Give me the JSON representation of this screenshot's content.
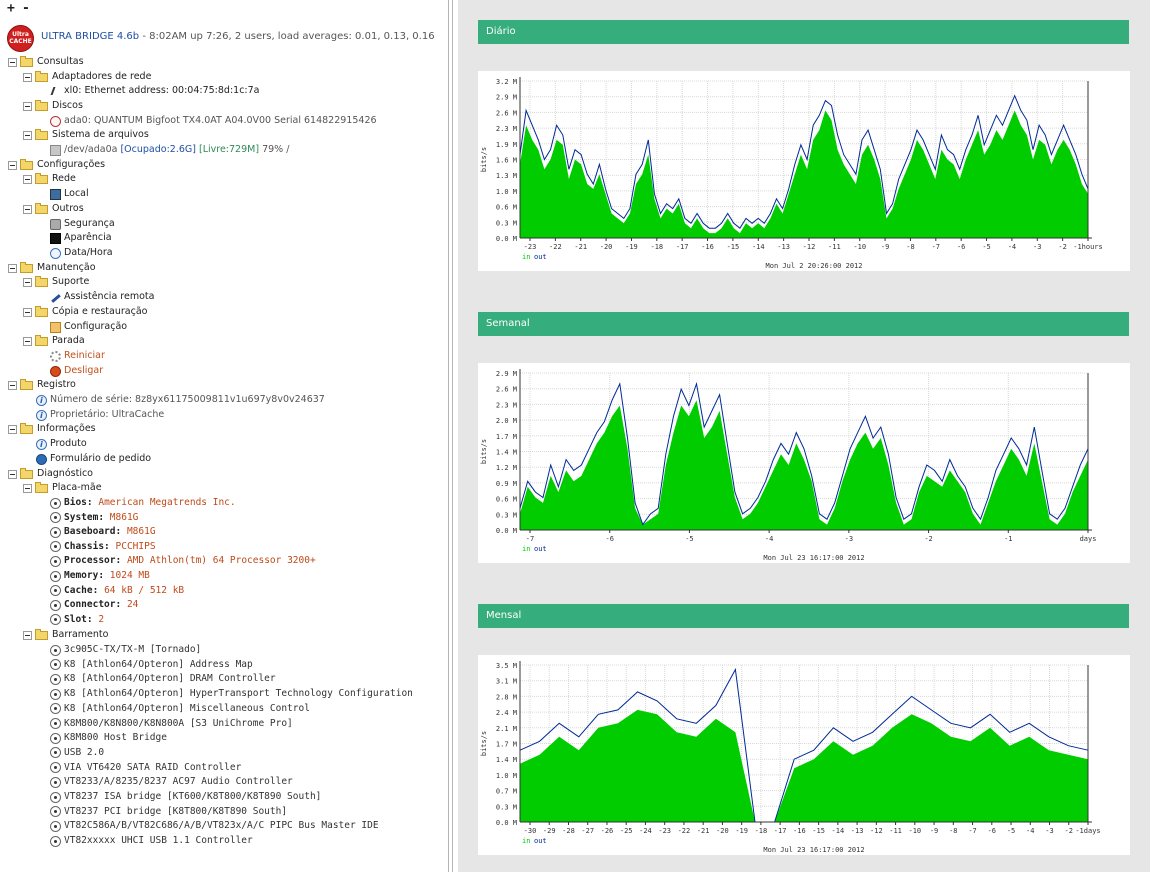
{
  "toolbar": {
    "expand": "+",
    "collapse": "-"
  },
  "header": {
    "logo_text": "Ultra CACHE",
    "app_name": "ULTRA BRIDGE 4.6b",
    "status": " - 8:02AM up 7:26, 2 users, load averages: 0.01, 0.13, 0.16"
  },
  "tree": {
    "consultas": "Consultas",
    "adaptadores": "Adaptadores de rede",
    "xl0": "xl0: Ethernet address: 00:04:75:8d:1c:7a",
    "discos": "Discos",
    "ada0": "ada0: QUANTUM Bigfoot TX4.0AT A04.0V00 Serial 614822915426",
    "sistema_arquivos": "Sistema de arquivos",
    "fs_dev": "/dev/ada0a",
    "fs_used": "[Ocupado:2.6G]",
    "fs_free": "[Livre:729M]",
    "fs_pct": "79% /",
    "configuracoes": "Configurações",
    "rede": "Rede",
    "local": "Local",
    "outros": "Outros",
    "seguranca": "Segurança",
    "aparencia": "Aparência",
    "datahora": "Data/Hora",
    "manutencao": "Manutenção",
    "suporte": "Suporte",
    "assistencia": "Assistência remota",
    "copia": "Cópia e restauração",
    "configuracao": "Configuração",
    "parada": "Parada",
    "reiniciar": "Reiniciar",
    "desligar": "Desligar",
    "registro": "Registro",
    "serie": "Número de série: 8z8yx61175009811v1u697y8v0v24637",
    "proprietario": "Proprietário: UltraCache",
    "informacoes": "Informações",
    "produto": "Produto",
    "formulario": "Formulário de pedido",
    "diagnostico": "Diagnóstico",
    "placa_mae": "Placa-mãe",
    "board": [
      {
        "key": "Bios:",
        "value": "American Megatrends Inc."
      },
      {
        "key": "System:",
        "value": "M861G"
      },
      {
        "key": "Baseboard:",
        "value": "M861G"
      },
      {
        "key": "Chassis:",
        "value": "PCCHIPS"
      },
      {
        "key": "Processor:",
        "value": "AMD Athlon(tm) 64 Processor 3200+"
      },
      {
        "key": "Memory:",
        "value": "1024 MB"
      },
      {
        "key": "Cache:",
        "value": "64 kB / 512 kB"
      },
      {
        "key": "Connector:",
        "value": "24"
      },
      {
        "key": "Slot:",
        "value": "2"
      }
    ],
    "barramento": "Barramento",
    "bus": [
      "3c905C-TX/TX-M [Tornado]",
      "K8 [Athlon64/Opteron] Address Map",
      "K8 [Athlon64/Opteron] DRAM Controller",
      "K8 [Athlon64/Opteron] HyperTransport Technology Configuration",
      "K8 [Athlon64/Opteron] Miscellaneous Control",
      "K8M800/K8N800/K8N800A [S3 UniChrome Pro]",
      "K8M800 Host Bridge",
      "USB 2.0",
      "VIA VT6420 SATA RAID Controller",
      "VT8233/A/8235/8237 AC97 Audio Controller",
      "VT8237 ISA bridge [KT600/K8T800/K8T890 South]",
      "VT8237 PCI bridge [K8T800/K8T890 South]",
      "VT82C586A/B/VT82C686/A/B/VT823x/A/C PIPC Bus Master IDE",
      "VT82xxxxx UHCI USB 1.1 Controller"
    ]
  },
  "panels": {
    "diario": "Diário",
    "semanal": "Semanal",
    "mensal": "Mensal"
  },
  "colors": {
    "in": "#00cc00",
    "out": "#002a97",
    "panel_header": "#36ad7c"
  },
  "chart_data": [
    {
      "type": "area",
      "ylabel": "bits/s",
      "legend": [
        "in",
        "out"
      ],
      "footer": "Mon Jul  2 20:26:00 2012",
      "x_ticks": [
        "-23",
        "-22",
        "-21",
        "-20",
        "-19",
        "-18",
        "-17",
        "-16",
        "-15",
        "-14",
        "-13",
        "-12",
        "-11",
        "-10",
        "-9",
        "-8",
        "-7",
        "-6",
        "-5",
        "-4",
        "-3",
        "-2",
        "-1hours"
      ],
      "y_ticks": [
        "0.0 M",
        "0.3 M",
        "0.6 M",
        "1.0 M",
        "1.3 M",
        "1.6 M",
        "1.9 M",
        "2.3 M",
        "2.6 M",
        "2.9 M",
        "3.2 M"
      ],
      "ylim": [
        0,
        3.2
      ],
      "series": [
        {
          "name": "in",
          "values": [
            1.5,
            2.3,
            2.0,
            1.8,
            1.4,
            1.6,
            2.0,
            1.9,
            1.2,
            1.6,
            1.5,
            1.1,
            1.0,
            1.3,
            0.9,
            0.5,
            0.4,
            0.3,
            0.5,
            1.1,
            1.3,
            1.7,
            0.8,
            0.4,
            0.6,
            0.5,
            0.7,
            0.3,
            0.2,
            0.4,
            0.2,
            0.1,
            0.1,
            0.2,
            0.4,
            0.2,
            0.1,
            0.3,
            0.2,
            0.3,
            0.2,
            0.4,
            0.7,
            0.5,
            0.9,
            1.3,
            1.7,
            1.4,
            2.0,
            2.2,
            2.6,
            2.4,
            1.8,
            1.5,
            1.3,
            1.1,
            1.7,
            1.9,
            1.6,
            1.2,
            0.4,
            0.6,
            1.0,
            1.3,
            1.6,
            2.0,
            1.8,
            1.5,
            1.2,
            1.8,
            1.6,
            1.5,
            1.2,
            1.6,
            1.9,
            2.2,
            1.7,
            1.9,
            2.2,
            2.0,
            2.3,
            2.6,
            2.3,
            2.1,
            1.6,
            2.0,
            1.9,
            1.5,
            1.8,
            2.0,
            1.8,
            1.5,
            1.1,
            0.9
          ]
        },
        {
          "name": "out",
          "values": [
            1.7,
            2.6,
            2.3,
            2.0,
            1.6,
            1.8,
            2.3,
            2.1,
            1.4,
            1.8,
            1.7,
            1.3,
            1.1,
            1.5,
            1.0,
            0.6,
            0.5,
            0.4,
            0.6,
            1.3,
            1.5,
            2.0,
            0.9,
            0.5,
            0.7,
            0.6,
            0.8,
            0.4,
            0.3,
            0.5,
            0.3,
            0.2,
            0.2,
            0.3,
            0.5,
            0.3,
            0.2,
            0.4,
            0.3,
            0.4,
            0.3,
            0.5,
            0.8,
            0.6,
            1.0,
            1.5,
            1.9,
            1.6,
            2.3,
            2.5,
            2.8,
            2.7,
            2.1,
            1.7,
            1.5,
            1.3,
            2.0,
            2.2,
            1.8,
            1.4,
            0.5,
            0.7,
            1.2,
            1.5,
            1.8,
            2.2,
            2.0,
            1.7,
            1.4,
            2.1,
            1.8,
            1.7,
            1.4,
            1.8,
            2.1,
            2.5,
            1.9,
            2.2,
            2.5,
            2.3,
            2.6,
            2.9,
            2.6,
            2.4,
            1.8,
            2.3,
            2.1,
            1.7,
            2.0,
            2.3,
            2.0,
            1.7,
            1.3,
            1.0
          ]
        }
      ]
    },
    {
      "type": "area",
      "ylabel": "bits/s",
      "legend": [
        "in",
        "out"
      ],
      "footer": "Mon Jul 23 16:17:00 2012",
      "x_ticks": [
        "-7",
        "-6",
        "-5",
        "-4",
        "-3",
        "-2",
        "-1",
        "days"
      ],
      "y_ticks": [
        "0.0 M",
        "0.3 M",
        "0.6 M",
        "0.9 M",
        "1.2 M",
        "1.4 M",
        "1.7 M",
        "2.0 M",
        "2.3 M",
        "2.6 M",
        "2.9 M"
      ],
      "ylim": [
        0,
        2.9
      ],
      "series": [
        {
          "name": "in",
          "values": [
            0.3,
            0.8,
            0.6,
            0.5,
            1.0,
            0.7,
            1.1,
            0.9,
            1.0,
            1.3,
            1.6,
            1.8,
            2.1,
            2.3,
            1.5,
            0.4,
            0.1,
            0.2,
            0.3,
            1.2,
            1.8,
            2.3,
            2.1,
            2.4,
            1.7,
            1.9,
            2.2,
            1.4,
            0.6,
            0.2,
            0.3,
            0.5,
            0.8,
            1.1,
            1.4,
            1.2,
            1.6,
            1.3,
            0.9,
            0.2,
            0.1,
            0.4,
            0.9,
            1.3,
            1.6,
            1.8,
            1.5,
            1.7,
            1.2,
            0.5,
            0.1,
            0.2,
            0.7,
            1.0,
            0.9,
            0.8,
            1.1,
            0.9,
            0.7,
            0.3,
            0.1,
            0.5,
            0.9,
            1.2,
            1.5,
            1.3,
            1.0,
            1.6,
            0.9,
            0.2,
            0.1,
            0.3,
            0.7,
            1.0,
            1.3
          ]
        },
        {
          "name": "out",
          "values": [
            0.4,
            0.9,
            0.7,
            0.6,
            1.2,
            0.8,
            1.3,
            1.1,
            1.2,
            1.5,
            1.8,
            2.0,
            2.4,
            2.7,
            1.7,
            0.5,
            0.1,
            0.3,
            0.4,
            1.4,
            2.1,
            2.6,
            2.3,
            2.7,
            1.9,
            2.2,
            2.5,
            1.6,
            0.7,
            0.3,
            0.4,
            0.6,
            0.9,
            1.3,
            1.6,
            1.4,
            1.8,
            1.5,
            1.0,
            0.3,
            0.2,
            0.5,
            1.0,
            1.5,
            1.8,
            2.1,
            1.7,
            1.9,
            1.4,
            0.6,
            0.2,
            0.3,
            0.8,
            1.2,
            1.1,
            0.9,
            1.3,
            1.0,
            0.8,
            0.4,
            0.2,
            0.6,
            1.1,
            1.4,
            1.7,
            1.5,
            1.2,
            1.9,
            1.1,
            0.3,
            0.2,
            0.4,
            0.8,
            1.2,
            1.5
          ]
        }
      ]
    },
    {
      "type": "area",
      "ylabel": "bits/s",
      "legend": [
        "in",
        "out"
      ],
      "footer": "Mon Jul 23 16:17:00 2012",
      "x_ticks": [
        "-30",
        "-29",
        "-28",
        "-27",
        "-26",
        "-25",
        "-24",
        "-23",
        "-22",
        "-21",
        "-20",
        "-19",
        "-18",
        "-17",
        "-16",
        "-15",
        "-14",
        "-13",
        "-12",
        "-11",
        "-10",
        "-9",
        "-8",
        "-7",
        "-6",
        "-5",
        "-4",
        "-3",
        "-2",
        "-1days"
      ],
      "y_ticks": [
        "0.0 M",
        "0.3 M",
        "0.7 M",
        "1.0 M",
        "1.4 M",
        "1.7 M",
        "2.1 M",
        "2.4 M",
        "2.8 M",
        "3.1 M",
        "3.5 M"
      ],
      "ylim": [
        0,
        3.5
      ],
      "series": [
        {
          "name": "in",
          "values": [
            1.3,
            1.5,
            1.9,
            1.6,
            2.1,
            2.2,
            2.5,
            2.4,
            2.0,
            1.9,
            2.3,
            2.0,
            0.0,
            0.0,
            1.2,
            1.4,
            1.8,
            1.5,
            1.7,
            2.1,
            2.4,
            2.2,
            1.9,
            1.8,
            2.1,
            1.7,
            1.9,
            1.6,
            1.5,
            1.4
          ]
        },
        {
          "name": "out",
          "values": [
            1.6,
            1.8,
            2.2,
            1.9,
            2.4,
            2.5,
            2.9,
            2.7,
            2.3,
            2.2,
            2.6,
            3.4,
            0.0,
            0.0,
            1.4,
            1.6,
            2.1,
            1.8,
            2.0,
            2.4,
            2.8,
            2.5,
            2.2,
            2.1,
            2.4,
            2.0,
            2.2,
            1.9,
            1.7,
            1.6
          ]
        }
      ]
    }
  ]
}
